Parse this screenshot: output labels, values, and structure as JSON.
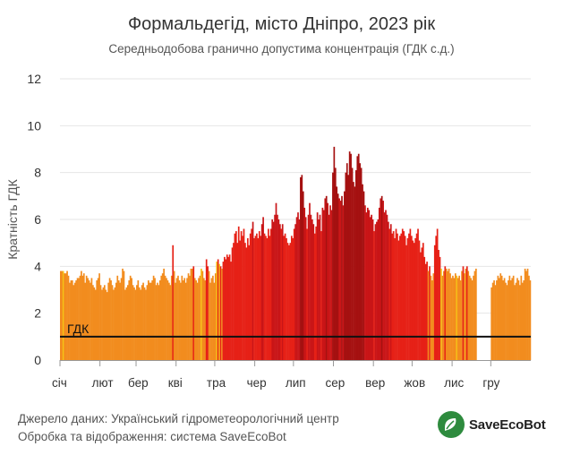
{
  "header": {
    "title": "Формальдегід, місто Дніпро, 2023 рік",
    "subtitle": "Середньодобова гранично допустима концентрація (ГДК с.д.)"
  },
  "footer": {
    "line1": "Джерело даних: Український гідрометеорологічний центр",
    "line2": "Обробка та відображення: система SaveEcoBot"
  },
  "logo": {
    "text": "SaveEcoBot",
    "icon": "leaf-chat-icon"
  },
  "colors": {
    "low": "#f28c1e",
    "medium": "#e62117",
    "high": "#c91517",
    "very_high": "#a51111",
    "highlight": "#f5c218",
    "reference_line": "#111111",
    "grid": "#e6e6e6"
  },
  "chart_data": {
    "type": "bar",
    "title": "Формальдегід, місто Дніпро, 2023 рік",
    "subtitle": "Середньодобова гранично допустима концентрація (ГДК с.д.)",
    "ylabel": "Кратність ГДК",
    "xlabel": "",
    "ylim": [
      0,
      12
    ],
    "yticks": [
      0,
      2,
      4,
      6,
      8,
      10,
      12
    ],
    "grid": true,
    "x_range": [
      "2023-01-01",
      "2023-12-31"
    ],
    "month_labels": [
      "січ",
      "лют",
      "бер",
      "кві",
      "тра",
      "чер",
      "лип",
      "сер",
      "вер",
      "жов",
      "лис",
      "гру"
    ],
    "reference_line": {
      "label": "ГДК",
      "value": 1
    },
    "missing_days": [
      "2023-11-20",
      "2023-11-21",
      "2023-11-22",
      "2023-11-23",
      "2023-11-24",
      "2023-11-25",
      "2023-11-26",
      "2023-11-27",
      "2023-11-28",
      "2023-11-29",
      "2023-11-30"
    ],
    "values": [
      3.8,
      3.8,
      3.8,
      3.7,
      3.7,
      3.8,
      3.6,
      3.3,
      3.4,
      3.4,
      3.2,
      3.3,
      3.4,
      3.5,
      3.5,
      3.6,
      3.8,
      3.6,
      3.7,
      3.3,
      3.6,
      3.5,
      3.4,
      3.3,
      3.5,
      3.2,
      3.1,
      3.0,
      3.4,
      3.5,
      3.7,
      3.2,
      3.0,
      3.1,
      3.2,
      3.0,
      2.9,
      3.3,
      3.5,
      3.4,
      3.2,
      3.0,
      3.1,
      3.3,
      3.6,
      3.4,
      3.3,
      3.5,
      3.9,
      3.8,
      3.0,
      3.1,
      3.2,
      3.4,
      3.6,
      3.5,
      3.2,
      3.1,
      3.0,
      3.2,
      3.4,
      3.1,
      3.0,
      3.2,
      3.3,
      3.1,
      3.0,
      3.2,
      3.4,
      3.3,
      3.3,
      3.4,
      3.6,
      3.5,
      3.2,
      3.3,
      3.2,
      3.4,
      3.6,
      3.7,
      3.9,
      3.6,
      3.5,
      3.4,
      3.3,
      3.2,
      3.6,
      4.9,
      3.8,
      3.3,
      3.5,
      3.6,
      3.4,
      3.3,
      3.6,
      3.4,
      3.5,
      3.3,
      3.5,
      3.7,
      3.6,
      3.9,
      3.9,
      4.0,
      3.5,
      3.4,
      3.3,
      3.5,
      3.6,
      3.9,
      3.8,
      3.5,
      3.4,
      4.3,
      4.0,
      3.8,
      3.3,
      3.5,
      3.6,
      3.3,
      3.7,
      4.2,
      4.3,
      4.1,
      4.0,
      3.9,
      4.2,
      4.4,
      4.3,
      4.5,
      4.4,
      4.5,
      4.2,
      4.8,
      5.0,
      5.4,
      5.5,
      5.0,
      5.7,
      5.1,
      5.5,
      5.3,
      5.6,
      5.0,
      4.8,
      5.2,
      4.9,
      5.4,
      5.6,
      5.9,
      5.2,
      5.3,
      5.4,
      5.2,
      5.5,
      5.3,
      5.8,
      6.1,
      5.4,
      5.3,
      5.2,
      5.6,
      5.3,
      5.6,
      6.0,
      5.9,
      6.2,
      6.7,
      6.2,
      6.0,
      5.8,
      5.6,
      5.8,
      5.3,
      5.4,
      5.2,
      5.0,
      4.9,
      5.0,
      5.3,
      5.2,
      5.6,
      5.8,
      6.1,
      6.3,
      6.0,
      7.8,
      7.9,
      7.2,
      6.5,
      6.1,
      5.6,
      6.2,
      6.7,
      6.2,
      6.0,
      5.8,
      5.4,
      5.7,
      6.3,
      6.0,
      6.2,
      5.5,
      6.5,
      6.4,
      6.9,
      7.0,
      6.7,
      6.2,
      6.6,
      6.4,
      8.0,
      9.1,
      8.2,
      7.4,
      7.1,
      6.9,
      6.8,
      7.0,
      6.6,
      7.2,
      8.0,
      8.4,
      7.9,
      8.9,
      8.8,
      8.2,
      7.6,
      7.4,
      8.1,
      8.7,
      8.8,
      8.4,
      8.2,
      7.5,
      7.2,
      6.6,
      6.3,
      6.5,
      6.4,
      6.1,
      6.2,
      6.0,
      5.5,
      5.8,
      5.9,
      6.0,
      6.5,
      6.9,
      7.0,
      6.8,
      6.3,
      6.4,
      6.2,
      5.9,
      5.6,
      5.8,
      5.4,
      5.5,
      5.2,
      5.6,
      5.4,
      5.1,
      5.3,
      5.4,
      5.6,
      5.5,
      5.3,
      4.9,
      5.2,
      5.4,
      5.6,
      5.3,
      5.1,
      5.0,
      5.2,
      5.4,
      5.6,
      5.1,
      4.6,
      4.8,
      5.0,
      4.4,
      4.1,
      4.2,
      3.8,
      4.0,
      3.6,
      3.4,
      3.7,
      4.9,
      5.3,
      5.6,
      4.7,
      4.4,
      3.9,
      3.6,
      3.8,
      4.0,
      3.9,
      3.8,
      3.9,
      3.7,
      3.5,
      3.6,
      3.5,
      3.7,
      3.6,
      3.5,
      3.6,
      3.4,
      3.8,
      4.0,
      3.7,
      3.9,
      4.0,
      3.8,
      3.6,
      3.5,
      3.4,
      3.6,
      3.8,
      3.9,
      3.1,
      3.3,
      3.4,
      3.2,
      3.4,
      3.6,
      3.5,
      3.7,
      3.6,
      3.4,
      3.5,
      3.3,
      3.2,
      3.4,
      3.6,
      3.4,
      3.5,
      3.6,
      3.2,
      3.3,
      3.5,
      3.4,
      3.2,
      3.6,
      3.3,
      3.4,
      3.9,
      3.8,
      3.9,
      3.6,
      3.4
    ],
    "yellow_days": [
      "2023-01-03",
      "2023-04-20",
      "2023-05-02",
      "2023-05-04",
      "2023-10-23",
      "2023-11-04"
    ]
  }
}
